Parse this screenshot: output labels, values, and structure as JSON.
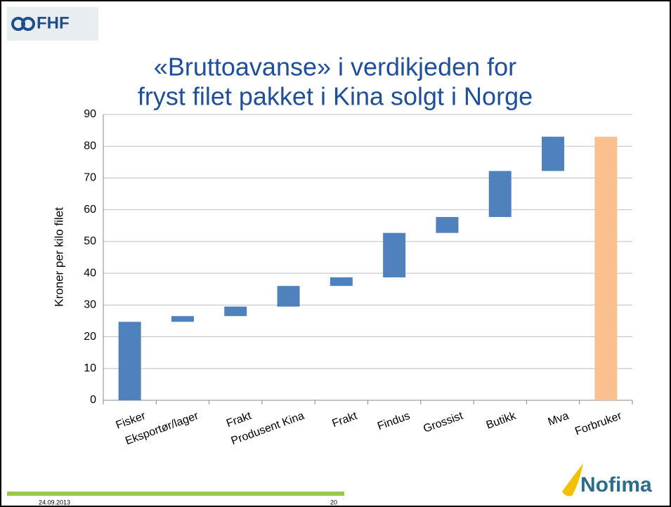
{
  "slide": {
    "logo": "FHF",
    "date": "24.09.2013",
    "page": "20",
    "brand": "Nofima"
  },
  "chart_data": {
    "type": "waterfall",
    "title": "«Bruttoavanse» i verdikjeden for",
    "subtitle": "fryst filet pakket i Kina solgt i Norge",
    "y_label": "Kroner per kilo filet",
    "categories": [
      "Fisker",
      "Eksportør/lager",
      "Frakt",
      "Produsent Kina",
      "Frakt",
      "Findus",
      "Grossist",
      "Butikk",
      "Mva",
      "Forbruker"
    ],
    "values": [
      24.7,
      1.8,
      3.0,
      6.5,
      2.7,
      14.0,
      5.0,
      14.5,
      10.8,
      83.0
    ],
    "color": "#4f81bd",
    "total_color": "#fac090",
    "ylim": [
      0,
      90
    ],
    "yticks": [
      0,
      10,
      20,
      30,
      40,
      50,
      60,
      70,
      80,
      90
    ],
    "grid": true
  }
}
